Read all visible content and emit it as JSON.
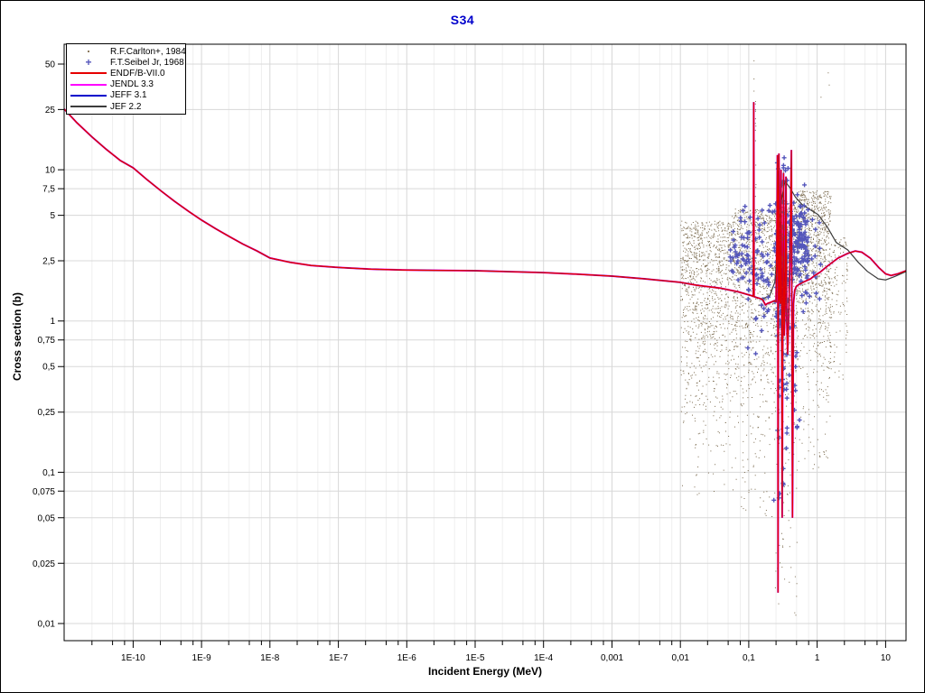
{
  "window": {
    "title": "S34",
    "title_color": "#0000cc"
  },
  "axes": {
    "x_label": "Incident Energy (MeV)",
    "y_label": "Cross section (b)",
    "xlim": [
      9.8e-12,
      19.9
    ],
    "ylim": [
      0.0077,
      67.6
    ],
    "x_scale": "log",
    "y_scale": "log",
    "x_ticks": [
      {
        "label": "1E-10",
        "value": 1e-10
      },
      {
        "label": "1E-9",
        "value": 1e-09
      },
      {
        "label": "1E-8",
        "value": 1e-08
      },
      {
        "label": "1E-7",
        "value": 1e-07
      },
      {
        "label": "1E-6",
        "value": 1e-06
      },
      {
        "label": "1E-5",
        "value": 1e-05
      },
      {
        "label": "1E-4",
        "value": 0.0001
      },
      {
        "label": "0,001",
        "value": 0.001
      },
      {
        "label": "0,01",
        "value": 0.01
      },
      {
        "label": "0,1",
        "value": 0.1
      },
      {
        "label": "1",
        "value": 1
      },
      {
        "label": "10",
        "value": 10
      }
    ],
    "y_ticks": [
      {
        "label": "50",
        "value": 50
      },
      {
        "label": "25",
        "value": 25
      },
      {
        "label": "10",
        "value": 10
      },
      {
        "label": "7,5",
        "value": 7.5
      },
      {
        "label": "5",
        "value": 5
      },
      {
        "label": "2,5",
        "value": 2.5
      },
      {
        "label": "1",
        "value": 1
      },
      {
        "label": "0,75",
        "value": 0.75
      },
      {
        "label": "0,5",
        "value": 0.5
      },
      {
        "label": "0,25",
        "value": 0.25
      },
      {
        "label": "0,1",
        "value": 0.1
      },
      {
        "label": "0,075",
        "value": 0.075
      },
      {
        "label": "0,05",
        "value": 0.05
      },
      {
        "label": "0,025",
        "value": 0.025
      },
      {
        "label": "0,01",
        "value": 0.01
      }
    ]
  },
  "legend": {
    "items": [
      {
        "label": "R.F.Carlton+, 1984",
        "marker": "dot",
        "color": "#8c7a5f"
      },
      {
        "label": "F.T.Seibel Jr, 1968",
        "marker": "plus",
        "color": "#5456bb"
      },
      {
        "label": "ENDF/B-VII.0",
        "marker": "line",
        "color": "#e60000"
      },
      {
        "label": "JENDL 3.3",
        "marker": "line",
        "color": "#ff00ff"
      },
      {
        "label": "JEFF 3.1",
        "marker": "line",
        "color": "#0000cc"
      },
      {
        "label": "JEF 2.2",
        "marker": "line",
        "color": "#3c3c3c"
      }
    ]
  },
  "chart_data": {
    "type": "scatter+line",
    "title": "S34",
    "xlabel": "Incident Energy (MeV)",
    "ylabel": "Cross section (b)",
    "minor_multipliers": [
      2.5,
      5,
      7.5
    ],
    "colors": {
      "grid_major": "#d8d8d8",
      "grid_minor": "#efefef"
    },
    "series": {
      "base_curve": [
        [
          9.8e-12,
          25.2
        ],
        [
          1.5e-11,
          20.5
        ],
        [
          2.5e-11,
          16.5
        ],
        [
          4e-11,
          13.7
        ],
        [
          6.5e-11,
          11.5
        ],
        [
          1e-10,
          10.3
        ],
        [
          1.6e-10,
          8.6
        ],
        [
          2.6e-10,
          7.2
        ],
        [
          4e-10,
          6.2
        ],
        [
          6.5e-10,
          5.3
        ],
        [
          1e-09,
          4.65
        ],
        [
          1.6e-09,
          4.08
        ],
        [
          2.6e-09,
          3.6
        ],
        [
          4e-09,
          3.23
        ],
        [
          6.5e-09,
          2.9
        ],
        [
          1e-08,
          2.61
        ],
        [
          2e-08,
          2.44
        ],
        [
          4e-08,
          2.33
        ],
        [
          1e-07,
          2.26
        ],
        [
          3e-07,
          2.2
        ],
        [
          1e-06,
          2.17
        ],
        [
          1e-05,
          2.15
        ],
        [
          0.0001,
          2.09
        ],
        [
          0.0003,
          2.04
        ],
        [
          0.001,
          1.98
        ],
        [
          0.003,
          1.9
        ],
        [
          0.01,
          1.8
        ],
        [
          0.018,
          1.72
        ],
        [
          0.038,
          1.65
        ],
        [
          0.07,
          1.56
        ],
        [
          0.11,
          1.47
        ]
      ],
      "resonance_curve": [
        [
          0.114,
          1.46
        ],
        [
          0.1165,
          1.5
        ],
        [
          0.118,
          28
        ],
        [
          0.1195,
          1.45
        ],
        [
          0.13,
          1.43
        ],
        [
          0.145,
          1.41
        ],
        [
          0.16,
          1.38
        ],
        [
          0.175,
          1.28
        ],
        [
          0.19,
          1.31
        ],
        [
          0.21,
          1.33
        ],
        [
          0.235,
          1.36
        ],
        [
          0.25,
          1.34
        ],
        [
          0.258,
          4
        ],
        [
          0.262,
          12.5
        ],
        [
          0.266,
          2
        ],
        [
          0.268,
          0.016
        ],
        [
          0.272,
          3
        ],
        [
          0.276,
          12.8
        ],
        [
          0.282,
          1.4
        ],
        [
          0.29,
          1.3
        ],
        [
          0.296,
          10
        ],
        [
          0.302,
          1.5
        ],
        [
          0.308,
          0.05
        ],
        [
          0.315,
          1.2
        ],
        [
          0.322,
          9.5
        ],
        [
          0.33,
          0.8
        ],
        [
          0.34,
          1.3
        ],
        [
          0.35,
          9
        ],
        [
          0.36,
          1
        ],
        [
          0.37,
          0.6
        ],
        [
          0.385,
          1.2
        ],
        [
          0.4,
          2.5
        ],
        [
          0.42,
          13.5
        ],
        [
          0.435,
          0.05
        ],
        [
          0.45,
          1.3
        ],
        [
          0.47,
          1.6
        ],
        [
          0.5,
          1.7
        ],
        [
          0.55,
          1.75
        ],
        [
          0.62,
          1.8
        ],
        [
          0.7,
          1.85
        ],
        [
          0.8,
          1.9
        ],
        [
          0.92,
          2
        ],
        [
          1.1,
          2.1
        ],
        [
          1.4,
          2.3
        ],
        [
          2,
          2.6
        ],
        [
          2.8,
          2.8
        ],
        [
          3.6,
          2.9
        ],
        [
          4.5,
          2.85
        ],
        [
          6,
          2.6
        ],
        [
          8,
          2.25
        ],
        [
          10,
          2.05
        ],
        [
          12,
          2
        ],
        [
          15,
          2.05
        ],
        [
          19.9,
          2.15
        ]
      ],
      "jef22_curve": [
        [
          0.114,
          1.46
        ],
        [
          0.15,
          1.4
        ],
        [
          0.2,
          1.45
        ],
        [
          0.24,
          1.8
        ],
        [
          0.27,
          3.5
        ],
        [
          0.3,
          6.2
        ],
        [
          0.337,
          8.4
        ],
        [
          0.4,
          7.6
        ],
        [
          0.48,
          6.6
        ],
        [
          0.6,
          5.9
        ],
        [
          0.76,
          5.5
        ],
        [
          1.03,
          5.05
        ],
        [
          1.4,
          4.2
        ],
        [
          1.9,
          3.3
        ],
        [
          2.8,
          2.95
        ],
        [
          4,
          2.44
        ],
        [
          5.4,
          2.13
        ],
        [
          7.8,
          1.9
        ],
        [
          10,
          1.87
        ],
        [
          13.6,
          1.97
        ],
        [
          19.9,
          2.12
        ]
      ],
      "endf": {
        "name": "ENDF/B-VII.0",
        "color": "#e60000"
      },
      "jendl": {
        "name": "JENDL 3.3",
        "color": "#ff00ff"
      },
      "jeff31": {
        "name": "JEFF 3.1",
        "color": "#0000cc"
      },
      "jef22": {
        "name": "JEF 2.2",
        "color": "#3c3c3c"
      },
      "carlton": {
        "name": "R.F.Carlton+, 1984",
        "color": "#7c6c50",
        "regions": [
          {
            "lx": [
              -2.0,
              -1.25
            ],
            "n": 1050,
            "top": 0.66,
            "spread": 0.62,
            "tail": 0.04,
            "tail_low": -1.15
          },
          {
            "lx": [
              -1.25,
              -0.62
            ],
            "n": 1000,
            "top": 0.74,
            "spread": 0.6,
            "tail": 0.05,
            "tail_low": -1.3
          },
          {
            "lx": [
              -0.62,
              -0.3
            ],
            "n": 950,
            "top": 0.8,
            "spread": 0.55,
            "tail": 0.09,
            "tail_low": -1.95
          },
          {
            "lx": [
              -0.3,
              0.2
            ],
            "n": 1000,
            "top": 0.86,
            "spread": 0.55,
            "tail": 0.06,
            "tail_low": -1.0
          },
          {
            "lx": [
              0.2,
              0.45
            ],
            "n": 110,
            "top": 0.55,
            "spread": 0.45,
            "tail": 0.02,
            "tail_low": -0.4
          }
        ],
        "columns": [
          {
            "lx": -0.905,
            "w": 0.012,
            "n": 28,
            "lv": [
              0.2,
              1.47
            ]
          },
          {
            "lx": -0.497,
            "w": 0.01,
            "n": 22,
            "lv": [
              0.2,
              1.17
            ]
          },
          {
            "lx": -0.58,
            "w": 0.01,
            "n": 10,
            "lv": [
              0.1,
              0.9
            ]
          }
        ],
        "outliers": [
          [
            0.155,
            1.64
          ],
          [
            0.17,
            1.56
          ],
          [
            -0.93,
            1.72
          ],
          [
            -0.93,
            1.6
          ],
          [
            -0.93,
            1.52
          ],
          [
            -0.93,
            1.4
          ],
          [
            0.05,
            1.48
          ]
        ]
      },
      "seibel": {
        "name": "F.T.Seibel Jr, 1968",
        "color": "#5456bb",
        "clusters": [
          {
            "lx": [
              -1.28,
              -0.98
            ],
            "n": 42,
            "mean": 0.52,
            "sd": 0.14,
            "clip": [
              0.25,
              0.93
            ]
          },
          {
            "lx": [
              -1.02,
              -0.64
            ],
            "n": 58,
            "mean": 0.36,
            "sd": 0.2,
            "clip": [
              -0.65,
              0.8
            ]
          },
          {
            "lx": [
              -0.64,
              -0.42
            ],
            "n": 90,
            "mean": 0.3,
            "sd": 0.5,
            "clip": [
              -1.35,
              1.08
            ]
          },
          {
            "lx": [
              -0.56,
              -0.545
            ],
            "n": 13,
            "uniform": [
              -1.3,
              0.85
            ]
          },
          {
            "lx": [
              -0.505,
              -0.49
            ],
            "n": 13,
            "uniform": [
              -1.1,
              0.95
            ]
          },
          {
            "lx": [
              -0.45,
              -0.44
            ],
            "n": 10,
            "uniform": [
              -0.9,
              0.8
            ]
          },
          {
            "lx": [
              -0.42,
              -0.13
            ],
            "n": 150,
            "mean": 0.53,
            "sd": 0.13,
            "clip": [
              -0.4,
              0.9
            ]
          },
          {
            "lx": [
              -0.42,
              -0.25
            ],
            "n": 12,
            "uniform": [
              -0.75,
              0.1
            ]
          },
          {
            "lx": [
              -0.13,
              0.12
            ],
            "n": 14,
            "mean": 0.4,
            "sd": 0.18,
            "clip": [
              0,
              0.7
            ]
          }
        ]
      }
    },
    "legend_position": "top-left",
    "grid": true
  }
}
